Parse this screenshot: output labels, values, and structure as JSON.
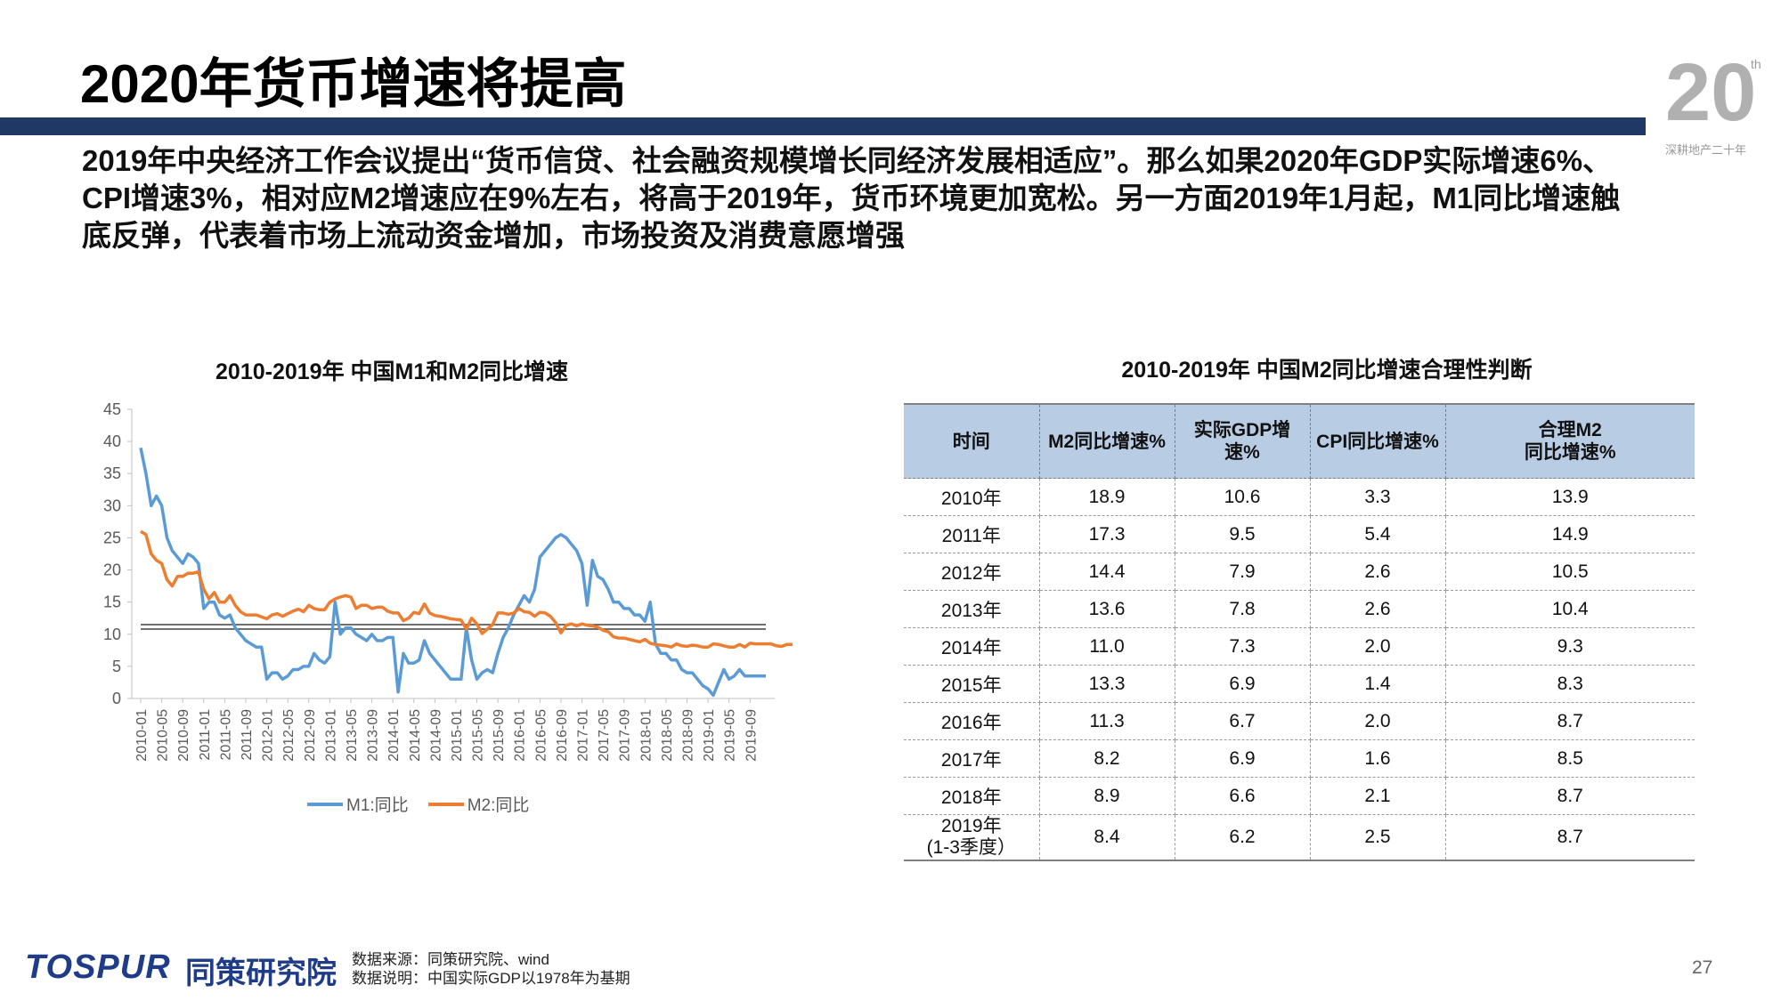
{
  "header": {
    "title": "2020年货币增速将提高",
    "logo_text": "20",
    "logo_suffix": "th",
    "logo_caption": "深耕地产二十年"
  },
  "body_text": "2019年中央经济工作会议提出“货币信贷、社会融资规模增长同经济发展相适应”。那么如果2020年GDP实际增速6%、CPI增速3%，相对应M2增速应在9%左右，将高于2019年，货币环境更加宽松。另一方面2019年1月起，M1同比增速触底反弹，代表着市场上流动资金增加，市场投资及消费意愿增强",
  "chart_title": "2010-2019年 中国M1和M2同比增速",
  "table_title": "2010-2019年 中国M2同比增速合理性判断",
  "colors": {
    "m1": "#5b9bd5",
    "m2": "#ed7d31",
    "header_fill": "#b8cce4",
    "bar": "#1f3864"
  },
  "chart_data": {
    "type": "line",
    "title": "2010-2019年 中国M1和M2同比增速",
    "ylim": [
      0,
      45
    ],
    "yticks": [
      0,
      5,
      10,
      15,
      20,
      25,
      30,
      35,
      40,
      45
    ],
    "xtick_labels": [
      "2010-01",
      "2010-05",
      "2010-09",
      "2011-01",
      "2011-05",
      "2011-09",
      "2012-01",
      "2012-05",
      "2012-09",
      "2013-01",
      "2013-05",
      "2013-09",
      "2014-01",
      "2014-05",
      "2014-09",
      "2015-01",
      "2015-05",
      "2015-09",
      "2016-01",
      "2016-05",
      "2016-09",
      "2017-01",
      "2017-05",
      "2017-09",
      "2018-01",
      "2018-05",
      "2018-09",
      "2019-01",
      "2019-05",
      "2019-09"
    ],
    "reference_lines": [
      11.5,
      10.8
    ],
    "series": [
      {
        "name": "M1:同比",
        "start": "2010-01",
        "values": [
          39,
          35,
          30,
          31.5,
          30,
          25,
          23,
          22,
          21,
          22.5,
          22,
          21,
          14,
          15,
          15,
          13,
          12.5,
          13,
          11,
          10,
          9,
          8.5,
          8,
          8,
          3,
          4,
          4,
          3,
          3.5,
          4.5,
          4.5,
          5,
          5,
          7,
          6,
          5.5,
          6.5,
          15,
          10,
          11,
          11,
          10,
          9.5,
          9,
          10,
          9,
          9,
          9.5,
          9.5,
          1,
          7,
          5.5,
          5.5,
          6,
          9,
          7,
          6,
          5,
          4,
          3,
          3,
          3,
          11,
          6,
          3,
          4,
          4.5,
          4,
          7,
          9.5,
          11,
          13,
          14.5,
          16,
          15,
          17,
          22,
          23,
          24,
          25,
          25.5,
          25,
          24,
          23,
          21,
          14.5,
          21.5,
          19,
          18.5,
          17,
          15,
          15,
          14,
          14,
          13,
          13,
          12,
          15,
          8.5,
          7,
          7,
          6,
          6,
          4.5,
          4,
          4,
          3,
          2,
          1.5,
          0.5,
          2.5,
          4.5,
          3,
          3.5,
          4.5,
          3.5,
          3.5,
          3.5,
          3.5,
          3.5
        ]
      },
      {
        "name": "M2:同比",
        "start": "2010-01",
        "values": [
          26,
          25.5,
          22.5,
          21.5,
          21,
          18.5,
          17.5,
          19,
          19,
          19.5,
          19.5,
          19.7,
          17,
          15.5,
          16.5,
          15,
          15,
          16,
          14.5,
          13.5,
          13,
          13,
          13,
          12.7,
          12.4,
          13,
          13.2,
          12.8,
          13.2,
          13.6,
          13.9,
          13.5,
          14.5,
          14,
          13.8,
          13.8,
          15,
          15.5,
          15.8,
          16,
          15.8,
          14,
          14.5,
          14.5,
          14,
          14.2,
          14.2,
          13.6,
          13.3,
          13.3,
          12.1,
          12.5,
          13.4,
          13.2,
          14.7,
          13.3,
          12.9,
          12.8,
          12.6,
          12.4,
          12.3,
          12.2,
          10.8,
          12.5,
          11.6,
          10.1,
          10.8,
          11.5,
          13.3,
          13.3,
          13.1,
          13.3,
          14,
          13.5,
          13.4,
          12.8,
          13.4,
          13.3,
          12.8,
          11.8,
          10.2,
          11.4,
          11.6,
          11.3,
          11.6,
          11.4,
          11.3,
          11.1,
          10.6,
          10.4,
          9.6,
          9.4,
          9.4,
          9.2,
          9.0,
          8.8,
          9.2,
          8.6,
          8.4,
          8.3,
          8.2,
          8.0,
          8.5,
          8.2,
          8.1,
          8.3,
          8.2,
          8.0,
          8.0,
          8.5,
          8.4,
          8.2,
          8.0,
          8.0,
          8.4,
          8.0,
          8.6,
          8.5,
          8.5,
          8.5,
          8.5,
          8.2,
          8.1,
          8.4,
          8.4,
          8.2,
          8.2,
          8.1
        ]
      }
    ]
  },
  "table": {
    "headers": [
      "时间",
      "M2同比增速%",
      "实际GDP增速%",
      "CPI同比增速%",
      "合理M2",
      "同比增速%"
    ],
    "rows": [
      [
        "2010年",
        "18.9",
        "10.6",
        "3.3",
        "13.9"
      ],
      [
        "2011年",
        "17.3",
        "9.5",
        "5.4",
        "14.9"
      ],
      [
        "2012年",
        "14.4",
        "7.9",
        "2.6",
        "10.5"
      ],
      [
        "2013年",
        "13.6",
        "7.8",
        "2.6",
        "10.4"
      ],
      [
        "2014年",
        "11.0",
        "7.3",
        "2.0",
        "9.3"
      ],
      [
        "2015年",
        "13.3",
        "6.9",
        "1.4",
        "8.3"
      ],
      [
        "2016年",
        "11.3",
        "6.7",
        "2.0",
        "8.7"
      ],
      [
        "2017年",
        "8.2",
        "6.9",
        "1.6",
        "8.5"
      ],
      [
        "2018年",
        "8.9",
        "6.6",
        "2.1",
        "8.7"
      ]
    ],
    "last_row": {
      "year": "2019年",
      "period": "(1-3季度）",
      "values": [
        "8.4",
        "6.2",
        "2.5",
        "8.7"
      ]
    }
  },
  "footer": {
    "brand_logo": "TOSPUR",
    "brand_name": "同策研究院",
    "source_line1": "数据来源：同策研究院、wind",
    "source_line2": "数据说明：中国实际GDP以1978年为基期",
    "page_number": "27"
  }
}
